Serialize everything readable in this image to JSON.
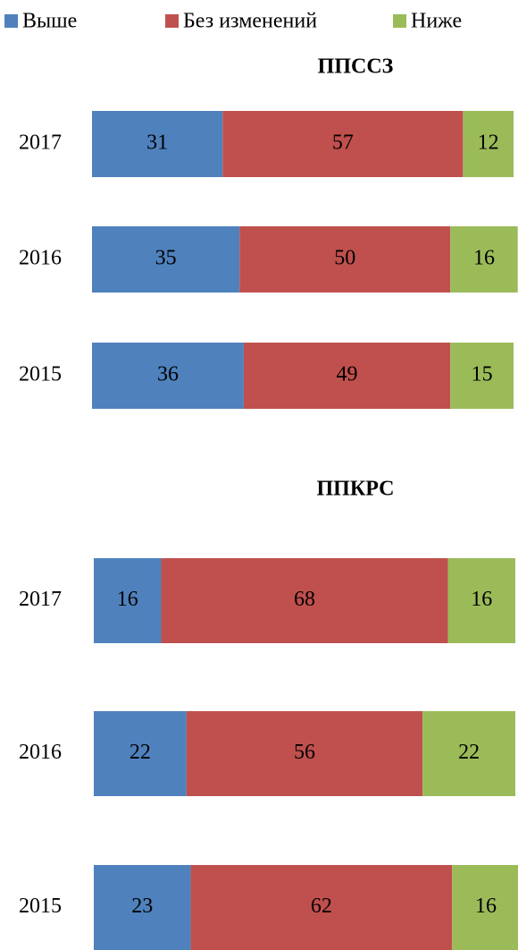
{
  "chart_data": [
    {
      "type": "stacked-bar-horizontal",
      "title": "ППССЗ",
      "categories": [
        "2017",
        "2016",
        "2015"
      ],
      "series": [
        {
          "name": "Выше",
          "color": "#4f81bd",
          "values": [
            31,
            35,
            36
          ]
        },
        {
          "name": "Без изменений",
          "color": "#c0504d",
          "values": [
            57,
            50,
            49
          ]
        },
        {
          "name": "Ниже",
          "color": "#9bbb59",
          "values": [
            12,
            16,
            15
          ]
        }
      ]
    },
    {
      "type": "stacked-bar-horizontal",
      "title": "ППКРС",
      "categories": [
        "2017",
        "2016",
        "2015"
      ],
      "series": [
        {
          "color": "#4f81bd",
          "values": [
            16,
            22,
            23
          ]
        },
        {
          "color": "#c0504d",
          "values": [
            68,
            56,
            62
          ]
        },
        {
          "color": "#9bbb59",
          "values": [
            16,
            22,
            16
          ]
        }
      ]
    }
  ]
}
